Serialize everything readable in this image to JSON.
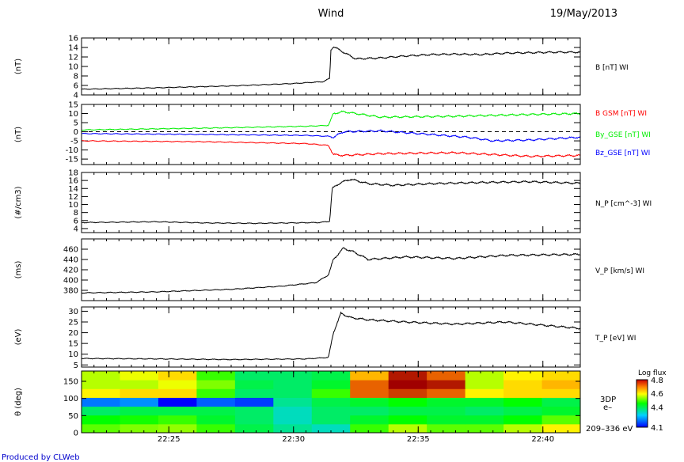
{
  "header": {
    "title": "Wind",
    "date": "19/May/2013"
  },
  "footer": {
    "credit": "Produced by CLWeb"
  },
  "colors": {
    "black": "#000000",
    "red": "#ff0000",
    "green": "#00ee00",
    "blue": "#0000ff"
  },
  "chart_data": [
    {
      "type": "line",
      "ylabel": "(nT)",
      "ylim": [
        4,
        16
      ],
      "yticks": [
        "4",
        "6",
        "8",
        "10",
        "12",
        "14",
        "16"
      ],
      "series": [
        {
          "name": "B [nT] WI",
          "color": "#000000",
          "x": [
            0,
            3,
            6,
            8.5,
            9.7,
            9.95,
            10,
            10.1,
            10.5,
            11,
            12,
            13,
            14,
            15,
            16,
            17,
            18,
            19,
            20
          ],
          "y": [
            5.2,
            5.5,
            5.9,
            6.4,
            6.8,
            7.5,
            13.5,
            14.2,
            13.0,
            11.6,
            11.8,
            12.2,
            12.5,
            12.6,
            12.5,
            12.8,
            12.9,
            13.0,
            13.0
          ]
        }
      ]
    },
    {
      "type": "line",
      "ylabel": "(nT)",
      "ylim": [
        -18,
        15
      ],
      "yticks": [
        "-15",
        "-10",
        "-5",
        "0",
        "5",
        "10",
        "15"
      ],
      "zero_line": true,
      "series": [
        {
          "name": "B GSM [nT] WI",
          "color": "#ff0000",
          "x": [
            0,
            5,
            9,
            9.9,
            10.1,
            10.5,
            12,
            15,
            18,
            20
          ],
          "y": [
            -5,
            -5.5,
            -6.5,
            -7.5,
            -12.5,
            -13,
            -12,
            -11.5,
            -13.5,
            -13
          ]
        },
        {
          "name": "By_GSE [nT] WI",
          "color": "#00ee00",
          "x": [
            0,
            5,
            9,
            9.9,
            10.1,
            10.5,
            12,
            15,
            18,
            20
          ],
          "y": [
            1,
            2,
            3,
            3.5,
            10,
            11,
            8,
            8.5,
            9.5,
            10
          ]
        },
        {
          "name": "Bz_GSE [nT] WI",
          "color": "#0000ff",
          "x": [
            0,
            5,
            9,
            9.9,
            10.1,
            10.5,
            12,
            14,
            15.5,
            16.5,
            18,
            20
          ],
          "y": [
            -1,
            -1.5,
            -2,
            -2.5,
            -3,
            0,
            0.5,
            -1.5,
            -3,
            -5,
            -4.5,
            -3
          ]
        }
      ]
    },
    {
      "type": "line",
      "ylabel": "(#/cm3)",
      "ylim": [
        3,
        18
      ],
      "yticks": [
        "4",
        "6",
        "8",
        "10",
        "12",
        "14",
        "16",
        "18"
      ],
      "series": [
        {
          "name": "N_P [cm^-3] WI",
          "color": "#000000",
          "x": [
            0,
            3,
            5,
            7,
            9.5,
            9.95,
            10.05,
            10.4,
            10.8,
            11.5,
            12.5,
            14,
            16,
            18,
            20
          ],
          "y": [
            5.5,
            5.7,
            5.4,
            5.3,
            5.5,
            5.8,
            14,
            15.5,
            16.3,
            15.2,
            14.8,
            15.2,
            15.5,
            15.7,
            15.3
          ]
        }
      ]
    },
    {
      "type": "line",
      "ylabel": "(ms)",
      "ylim": [
        360,
        480
      ],
      "yticks": [
        "380",
        "400",
        "420",
        "440",
        "460"
      ],
      "series": [
        {
          "name": "V_P [km/s] WI",
          "color": "#000000",
          "x": [
            0,
            3,
            6,
            8,
            9.4,
            9.9,
            10.1,
            10.5,
            10.9,
            11.5,
            13,
            15,
            17,
            20
          ],
          "y": [
            375,
            377,
            382,
            388,
            395,
            410,
            440,
            462,
            455,
            440,
            445,
            442,
            448,
            450
          ]
        }
      ]
    },
    {
      "type": "line",
      "ylabel": "(eV)",
      "ylim": [
        4,
        32
      ],
      "yticks": [
        "5",
        "10",
        "15",
        "20",
        "25",
        "30"
      ],
      "series": [
        {
          "name": "T_P [eV] WI",
          "color": "#000000",
          "x": [
            0,
            3,
            6,
            9,
            9.9,
            10.1,
            10.4,
            10.8,
            11.5,
            13,
            15,
            17,
            19,
            20
          ],
          "y": [
            8,
            7.8,
            7.5,
            7.8,
            8.5,
            20,
            29,
            27,
            26,
            25,
            24,
            25,
            23,
            22
          ]
        }
      ]
    },
    {
      "type": "heatmap",
      "ylabel": "θ (deg)",
      "ylim": [
        0,
        180
      ],
      "yticks": [
        "0",
        "50",
        "100",
        "150"
      ],
      "right_label": [
        "3DP",
        "e–",
        "209–336 eV"
      ],
      "colorbar": {
        "label": "Log flux",
        "range": [
          4.1,
          4.8
        ],
        "ticks": [
          "4.8",
          "4.6",
          "4.4",
          "4.1"
        ]
      },
      "cols": 13,
      "rows": 7,
      "values": [
        [
          4.5,
          4.52,
          4.53,
          4.48,
          4.4,
          4.35,
          4.32,
          4.48,
          4.55,
          4.5,
          4.5,
          4.55,
          4.6
        ],
        [
          4.45,
          4.46,
          4.48,
          4.42,
          4.38,
          4.32,
          4.38,
          4.42,
          4.45,
          4.42,
          4.42,
          4.45,
          4.5
        ],
        [
          4.38,
          4.4,
          4.4,
          4.4,
          4.38,
          4.32,
          4.38,
          4.38,
          4.4,
          4.4,
          4.38,
          4.4,
          4.42
        ],
        [
          4.2,
          4.22,
          4.1,
          4.18,
          4.15,
          4.35,
          4.4,
          4.42,
          4.45,
          4.42,
          4.42,
          4.45,
          4.4
        ],
        [
          4.6,
          4.62,
          4.62,
          4.48,
          4.38,
          4.38,
          4.48,
          4.72,
          4.75,
          4.72,
          4.6,
          4.62,
          4.62
        ],
        [
          4.55,
          4.55,
          4.58,
          4.52,
          4.4,
          4.38,
          4.42,
          4.72,
          4.82,
          4.78,
          4.55,
          4.62,
          4.65
        ],
        [
          4.55,
          4.58,
          4.62,
          4.48,
          4.38,
          4.38,
          4.4,
          4.65,
          4.78,
          4.72,
          4.55,
          4.6,
          4.62
        ]
      ]
    }
  ],
  "xaxis": {
    "ticks": [
      "22:25",
      "22:30",
      "22:35",
      "22:40"
    ],
    "range_minutes": [
      0,
      20
    ],
    "tick_minutes": [
      3.5,
      8.5,
      13.5,
      18.5
    ]
  }
}
